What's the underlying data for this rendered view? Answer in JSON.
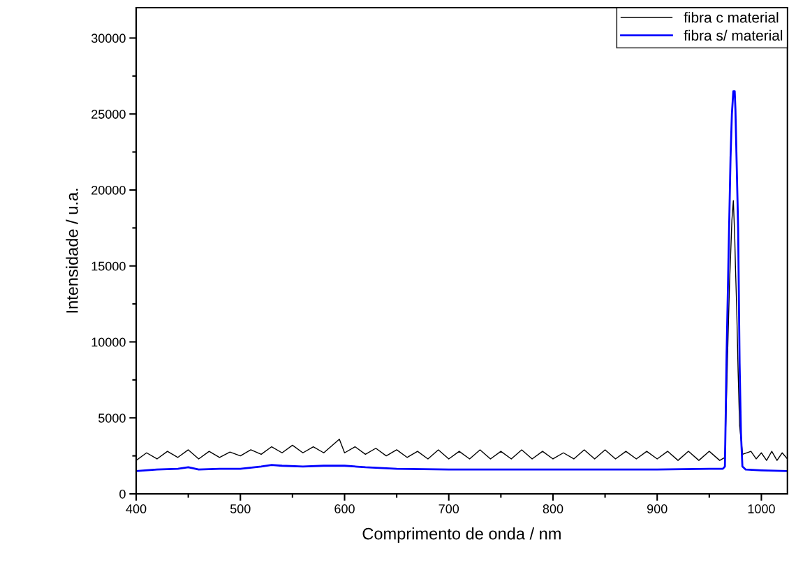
{
  "chart_data": {
    "type": "line",
    "xlabel": "Comprimento de onda / nm",
    "ylabel": "Intensidade / u.a.",
    "xlim": [
      400,
      1025
    ],
    "xticks": [
      400,
      500,
      600,
      700,
      800,
      900,
      1000
    ],
    "ylim": [
      0,
      32000
    ],
    "yticks": [
      0,
      5000,
      10000,
      15000,
      20000,
      25000,
      30000
    ],
    "grid": false,
    "legend": "top right",
    "marker": "none",
    "line_style": "solid",
    "series": [
      {
        "name": "fibra c material",
        "color": "#000000",
        "x": [
          400,
          410,
          420,
          430,
          440,
          450,
          460,
          470,
          480,
          490,
          500,
          510,
          520,
          530,
          540,
          550,
          560,
          570,
          580,
          590,
          595,
          600,
          610,
          620,
          630,
          640,
          650,
          660,
          670,
          680,
          690,
          700,
          710,
          720,
          730,
          740,
          750,
          760,
          770,
          780,
          790,
          800,
          810,
          820,
          830,
          840,
          850,
          860,
          870,
          880,
          890,
          900,
          910,
          920,
          930,
          940,
          950,
          960,
          965,
          968.3,
          969.5,
          970.4,
          971.7,
          973.1,
          974.4,
          975.1,
          976.4,
          977.7,
          979.1,
          982,
          990,
          995,
          1000,
          1005,
          1010,
          1015,
          1020,
          1025
        ],
        "values": [
          2200,
          2700,
          2300,
          2800,
          2400,
          2900,
          2300,
          2800,
          2400,
          2750,
          2500,
          2900,
          2600,
          3100,
          2700,
          3200,
          2700,
          3100,
          2700,
          3300,
          3600,
          2700,
          3100,
          2600,
          3000,
          2500,
          2900,
          2400,
          2800,
          2300,
          2900,
          2300,
          2800,
          2300,
          2900,
          2300,
          2800,
          2300,
          2900,
          2300,
          2800,
          2300,
          2700,
          2300,
          2900,
          2300,
          2900,
          2300,
          2800,
          2300,
          2800,
          2300,
          2800,
          2200,
          2800,
          2200,
          2800,
          2200,
          2400,
          11000,
          14000,
          15500,
          18000,
          19300,
          17000,
          15000,
          12000,
          8000,
          4500,
          2600,
          2800,
          2300,
          2700,
          2200,
          2800,
          2200,
          2700,
          2300
        ]
      },
      {
        "name": "fibra s/ material",
        "color": "#0000ff",
        "x": [
          400,
          420,
          440,
          450,
          460,
          480,
          500,
          520,
          530,
          540,
          560,
          580,
          600,
          620,
          650,
          700,
          750,
          800,
          850,
          900,
          950,
          963,
          965,
          965.7,
          966.6,
          968.3,
          970.4,
          971.7,
          973.1,
          974.4,
          975.1,
          976.4,
          977.7,
          979.1,
          980.4,
          981.8,
          985,
          1000,
          1025
        ],
        "values": [
          1500,
          1600,
          1650,
          1750,
          1600,
          1650,
          1650,
          1800,
          1900,
          1850,
          1800,
          1850,
          1850,
          1750,
          1650,
          1600,
          1600,
          1600,
          1600,
          1600,
          1650,
          1650,
          1800,
          4900,
          9100,
          15000,
          22100,
          25000,
          26500,
          26500,
          25300,
          21400,
          17500,
          8600,
          4000,
          1800,
          1600,
          1550,
          1500
        ]
      }
    ]
  }
}
